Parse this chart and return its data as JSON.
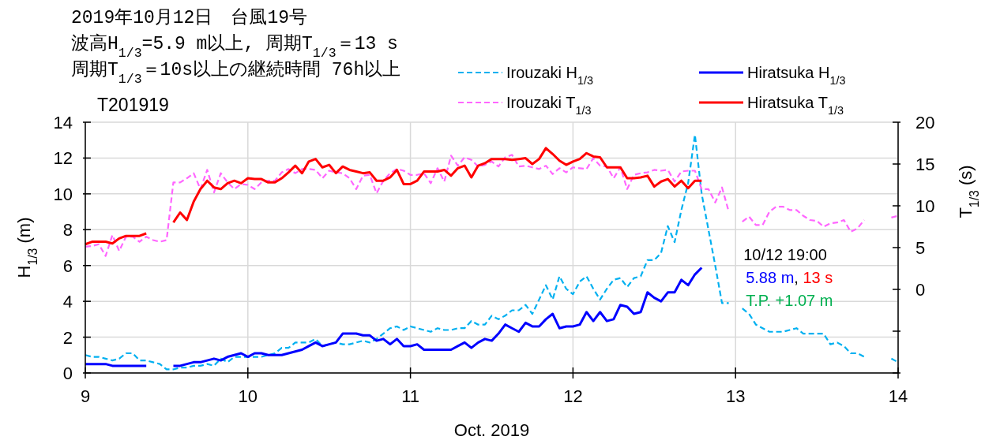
{
  "chart_data": {
    "type": "line",
    "title": "2019年10月12日　台風19号",
    "subtitle": "波高H$_{1/3}$=5.9 m以上, 周期T$_{1/3}$＝13 s\n周期T$_{1/3}$＝10s以上の継続時間 76h以上",
    "xlabel": "Oct. 2019",
    "ylabel": "H$_{1/3}$ (m)",
    "y2label": "T$_{1/3}$ (s)",
    "annotations": [
      "T201919",
      "10/12 19:00",
      "5.88 m, 13 s",
      "T.P. +1.07 m"
    ],
    "x": [
      "2019-10-09T00:00",
      "2019-10-09T01:00",
      "2019-10-09T02:00",
      "2019-10-09T03:00",
      "2019-10-09T04:00",
      "2019-10-09T05:00",
      "2019-10-09T06:00",
      "2019-10-09T07:00",
      "2019-10-09T08:00",
      "2019-10-09T09:00",
      "2019-10-09T10:00",
      "2019-10-09T11:00",
      "2019-10-09T12:00",
      "2019-10-09T13:00",
      "2019-10-09T14:00",
      "2019-10-09T15:00",
      "2019-10-09T16:00",
      "2019-10-09T17:00",
      "2019-10-09T18:00",
      "2019-10-09T19:00",
      "2019-10-09T20:00",
      "2019-10-09T21:00",
      "2019-10-09T22:00",
      "2019-10-09T23:00",
      "2019-10-10T00:00",
      "2019-10-10T01:00",
      "2019-10-10T02:00",
      "2019-10-10T03:00",
      "2019-10-10T04:00",
      "2019-10-10T05:00",
      "2019-10-10T06:00",
      "2019-10-10T07:00",
      "2019-10-10T08:00",
      "2019-10-10T09:00",
      "2019-10-10T10:00",
      "2019-10-10T11:00",
      "2019-10-10T12:00",
      "2019-10-10T13:00",
      "2019-10-10T14:00",
      "2019-10-10T15:00",
      "2019-10-10T16:00",
      "2019-10-10T17:00",
      "2019-10-10T18:00",
      "2019-10-10T19:00",
      "2019-10-10T20:00",
      "2019-10-10T21:00",
      "2019-10-10T22:00",
      "2019-10-10T23:00",
      "2019-10-11T00:00",
      "2019-10-11T01:00",
      "2019-10-11T02:00",
      "2019-10-11T03:00",
      "2019-10-11T04:00",
      "2019-10-11T05:00",
      "2019-10-11T06:00",
      "2019-10-11T07:00",
      "2019-10-11T08:00",
      "2019-10-11T09:00",
      "2019-10-11T10:00",
      "2019-10-11T11:00",
      "2019-10-11T12:00",
      "2019-10-11T13:00",
      "2019-10-11T14:00",
      "2019-10-11T15:00",
      "2019-10-11T16:00",
      "2019-10-11T17:00",
      "2019-10-11T18:00",
      "2019-10-11T19:00",
      "2019-10-11T20:00",
      "2019-10-11T21:00",
      "2019-10-11T22:00",
      "2019-10-11T23:00",
      "2019-10-12T00:00",
      "2019-10-12T01:00",
      "2019-10-12T02:00",
      "2019-10-12T03:00",
      "2019-10-12T04:00",
      "2019-10-12T05:00",
      "2019-10-12T06:00",
      "2019-10-12T07:00",
      "2019-10-12T08:00",
      "2019-10-12T09:00",
      "2019-10-12T10:00",
      "2019-10-12T11:00",
      "2019-10-12T12:00",
      "2019-10-12T13:00",
      "2019-10-12T14:00",
      "2019-10-12T15:00",
      "2019-10-12T16:00",
      "2019-10-12T17:00",
      "2019-10-12T18:00",
      "2019-10-12T19:00",
      "2019-10-12T20:00",
      "2019-10-12T21:00",
      "2019-10-12T22:00",
      "2019-10-12T23:00",
      "2019-10-13T00:00",
      "2019-10-13T01:00",
      "2019-10-13T02:00",
      "2019-10-13T03:00",
      "2019-10-13T04:00",
      "2019-10-13T05:00",
      "2019-10-13T06:00",
      "2019-10-13T07:00",
      "2019-10-13T08:00",
      "2019-10-13T09:00",
      "2019-10-13T10:00",
      "2019-10-13T11:00",
      "2019-10-13T12:00",
      "2019-10-13T13:00",
      "2019-10-13T14:00",
      "2019-10-13T15:00",
      "2019-10-13T16:00",
      "2019-10-13T17:00",
      "2019-10-13T18:00",
      "2019-10-13T19:00",
      "2019-10-13T20:00",
      "2019-10-13T21:00",
      "2019-10-13T22:00",
      "2019-10-13T23:00",
      "2019-10-14T00:00"
    ],
    "series": [
      {
        "name": "Irouzaki H$_{1/3}$",
        "color": "#00b0f0",
        "line_style": "dashed",
        "values": [
          1.0,
          0.9,
          0.9,
          0.8,
          0.7,
          0.8,
          1.1,
          1.1,
          0.7,
          0.7,
          0.6,
          0.5,
          0.2,
          0.2,
          0.3,
          0.3,
          0.4,
          0.4,
          0.5,
          0.4,
          0.8,
          0.6,
          0.9,
          0.9,
          0.9,
          0.9,
          0.9,
          1.0,
          1.1,
          1.4,
          1.4,
          1.7,
          1.7,
          1.7,
          1.9,
          1.5,
          1.6,
          1.7,
          1.6,
          1.6,
          1.7,
          1.8,
          1.7,
          1.9,
          2.2,
          2.5,
          2.6,
          2.4,
          2.6,
          2.5,
          2.4,
          2.3,
          2.5,
          2.4,
          2.4,
          2.5,
          2.5,
          2.9,
          2.7,
          2.7,
          3.2,
          3.0,
          3.2,
          3.5,
          3.5,
          3.8,
          3.3,
          4.1,
          4.9,
          4.1,
          5.4,
          4.7,
          4.4,
          5.1,
          5.4,
          4.7,
          4.1,
          4.7,
          5.2,
          5.3,
          4.8,
          5.3,
          5.4,
          6.3,
          6.3,
          6.7,
          8.2,
          7.3,
          9.1,
          10.6,
          13.3,
          10.0,
          8.0,
          6.0,
          3.9,
          3.9,
          null,
          3.6,
          3.3,
          2.7,
          2.5,
          2.3,
          2.3,
          2.3,
          2.4,
          2.5,
          2.2,
          2.2,
          2.2,
          2.2,
          1.6,
          1.7,
          1.5,
          1.1,
          1.1,
          0.9,
          null,
          null,
          null,
          0.8,
          0.6
        ]
      },
      {
        "name": "Irouzaki T$_{1/3}$",
        "color": "#ff66ff",
        "line_style": "dashed",
        "axis": "y2",
        "values": [
          5.1,
          5.2,
          5.4,
          4.0,
          6.5,
          4.6,
          6.3,
          6.3,
          5.7,
          6.3,
          5.9,
          5.7,
          5.9,
          12.8,
          12.8,
          13.3,
          13.9,
          12.0,
          14.3,
          11.6,
          13.9,
          12.8,
          12.0,
          12.6,
          12.5,
          12.0,
          12.8,
          13.0,
          13.0,
          14.0,
          14.4,
          13.9,
          14.4,
          14.4,
          14.3,
          13.3,
          14.2,
          14.0,
          13.9,
          13.3,
          12.0,
          13.6,
          13.7,
          11.5,
          13.0,
          13.9,
          14.4,
          14.2,
          13.7,
          13.7,
          13.9,
          12.7,
          14.5,
          12.9,
          16.0,
          14.8,
          15.8,
          15.5,
          14.7,
          14.9,
          15.3,
          14.7,
          15.8,
          16.1,
          14.7,
          14.8,
          14.6,
          14.4,
          14.8,
          13.8,
          14.5,
          14.0,
          14.6,
          14.5,
          14.4,
          15.7,
          14.8,
          14.7,
          13.3,
          14.6,
          12.0,
          13.7,
          13.9,
          14.0,
          14.3,
          14.2,
          14.3,
          12.9,
          14.1,
          14.2,
          14.2,
          12.0,
          12.0,
          10.4,
          12.2,
          9.3,
          null,
          8.1,
          8.7,
          7.7,
          7.7,
          9.3,
          9.9,
          9.9,
          9.5,
          9.5,
          8.8,
          8.3,
          8.2,
          7.5,
          7.9,
          8.0,
          8.3,
          6.9,
          7.3,
          8.3,
          null,
          null,
          null,
          8.6,
          8.8
        ]
      },
      {
        "name": "Hiratsuka H$_{1/3}$",
        "color": "#0000ff",
        "line_style": "solid",
        "values": [
          0.5,
          0.5,
          0.5,
          0.5,
          0.4,
          0.4,
          0.4,
          0.4,
          0.4,
          0.4,
          null,
          null,
          null,
          0.4,
          0.4,
          0.5,
          0.6,
          0.6,
          0.7,
          0.8,
          0.7,
          0.9,
          1.0,
          1.1,
          0.9,
          1.1,
          1.1,
          1.0,
          1.0,
          1.0,
          1.1,
          1.2,
          1.3,
          1.5,
          1.7,
          1.5,
          1.6,
          1.7,
          2.2,
          2.2,
          2.2,
          2.1,
          2.1,
          1.8,
          1.9,
          1.6,
          1.9,
          1.5,
          1.5,
          1.6,
          1.3,
          1.3,
          1.3,
          1.3,
          1.3,
          1.5,
          1.7,
          1.4,
          1.7,
          1.9,
          1.8,
          2.2,
          2.7,
          2.5,
          2.3,
          2.8,
          2.6,
          2.6,
          3.0,
          3.3,
          2.5,
          2.6,
          2.6,
          2.7,
          3.4,
          2.9,
          3.4,
          2.9,
          3.0,
          3.8,
          3.7,
          3.3,
          3.4,
          4.5,
          4.2,
          4.0,
          4.5,
          4.5,
          5.2,
          4.9,
          5.5,
          5.88,
          null,
          null,
          null,
          null,
          null,
          null,
          null,
          null,
          null,
          null,
          null,
          null,
          null,
          null,
          null,
          null,
          null,
          null,
          null,
          null,
          null,
          null,
          null,
          null,
          null,
          null,
          null,
          null,
          null
        ]
      },
      {
        "name": "Hiratsuka T$_{1/3}$",
        "color": "#ff0000",
        "line_style": "solid",
        "axis": "y2",
        "values": [
          5.4,
          5.7,
          5.7,
          5.7,
          5.5,
          6.1,
          6.4,
          6.4,
          6.4,
          6.7,
          null,
          null,
          null,
          8.0,
          9.2,
          8.3,
          10.5,
          12.0,
          13.0,
          12.2,
          12.0,
          12.7,
          13.0,
          12.7,
          13.3,
          13.2,
          13.2,
          12.8,
          12.8,
          13.3,
          14.0,
          14.8,
          13.9,
          15.3,
          15.6,
          14.6,
          14.9,
          13.9,
          14.7,
          14.3,
          14.1,
          13.9,
          14.0,
          13.0,
          13.0,
          13.4,
          14.3,
          12.6,
          12.6,
          13.0,
          14.1,
          14.1,
          14.1,
          14.3,
          13.6,
          14.5,
          14.8,
          13.4,
          14.8,
          15.1,
          15.6,
          15.6,
          15.6,
          15.5,
          15.6,
          15.7,
          15.0,
          15.6,
          16.9,
          16.2,
          15.4,
          14.9,
          15.3,
          15.6,
          16.3,
          15.9,
          15.8,
          14.6,
          14.6,
          14.6,
          13.3,
          13.3,
          13.4,
          13.6,
          12.3,
          12.9,
          13.2,
          12.3,
          13.0,
          12.1,
          13.0,
          13,
          null,
          null,
          null,
          null,
          null,
          null,
          null,
          null,
          null,
          null,
          null,
          null,
          null,
          null,
          null,
          null,
          null,
          null,
          null,
          null,
          null,
          null,
          null,
          null,
          null,
          null,
          null,
          null,
          null
        ]
      }
    ],
    "xlim": [
      "2019-10-09",
      "2019-10-14"
    ],
    "xticks": [
      {
        "value": "2019-10-09",
        "label": "9"
      },
      {
        "value": "2019-10-10",
        "label": "10"
      },
      {
        "value": "2019-10-11",
        "label": "11"
      },
      {
        "value": "2019-10-12",
        "label": "12"
      },
      {
        "value": "2019-10-13",
        "label": "13"
      },
      {
        "value": "2019-10-14",
        "label": "14"
      }
    ],
    "ylim": [
      0,
      14
    ],
    "yticks": [
      0,
      2,
      4,
      6,
      8,
      10,
      12,
      14
    ],
    "y2lim": [
      -10,
      20
    ],
    "y2ticks": [
      {
        "value": -10,
        "label": null
      },
      {
        "value": -5,
        "label": null
      },
      0,
      5,
      10,
      15,
      20
    ],
    "grid": true,
    "legend": "top right"
  }
}
